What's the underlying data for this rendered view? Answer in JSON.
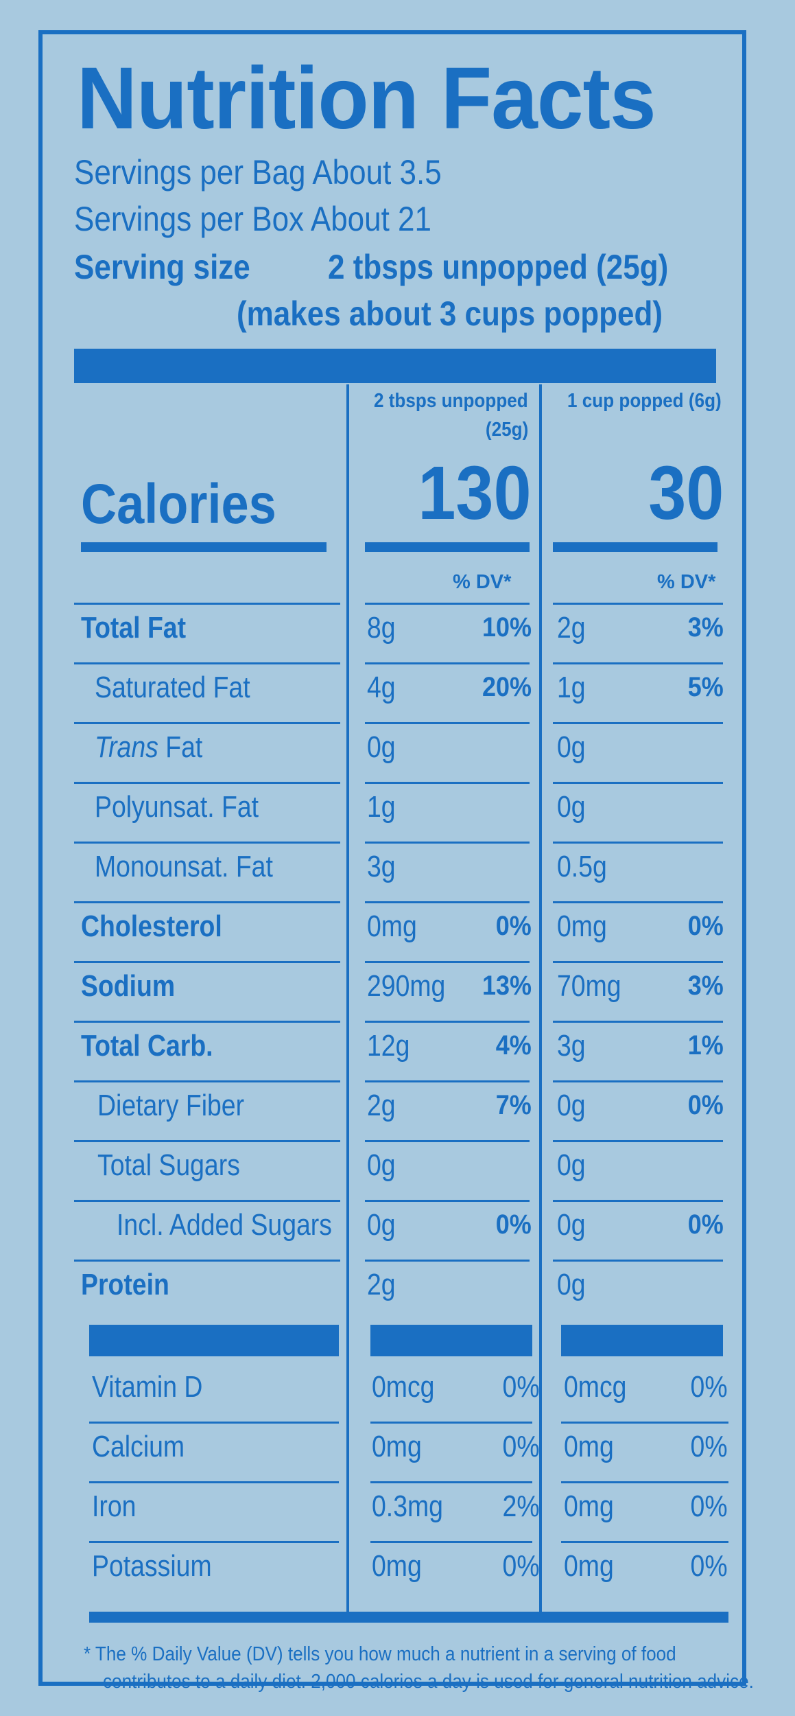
{
  "title": "Nutrition Facts",
  "servings_bag": "Servings per Bag About 3.5",
  "servings_box": "Servings per Box About 21",
  "serving_size_label": "Serving size",
  "serving_size_value": "2 tbsps unpopped (25g)",
  "serving_size_note": "(makes about 3 cups popped)",
  "col1_header_line1": "2 tbsps unpopped",
  "col1_header_line2": "(25g)",
  "col2_header": "1 cup popped (6g)",
  "calories_label": "Calories",
  "calories_col1": "130",
  "calories_col2": "30",
  "dv_header": "% DV*",
  "rows": [
    {
      "label": "Total Fat",
      "a1": "8g",
      "p1": "10%",
      "a2": "2g",
      "p2": "3%"
    },
    {
      "label": "Saturated Fat",
      "a1": "4g",
      "p1": "20%",
      "a2": "1g",
      "p2": "5%"
    },
    {
      "label_italic": "Trans",
      "label": " Fat",
      "a1": "0g",
      "p1": "",
      "a2": "0g",
      "p2": ""
    },
    {
      "label": "Polyunsat. Fat",
      "a1": "1g",
      "p1": "",
      "a2": "0g",
      "p2": ""
    },
    {
      "label": "Monounsat. Fat",
      "a1": "3g",
      "p1": "",
      "a2": "0.5g",
      "p2": ""
    },
    {
      "label": "Cholesterol",
      "a1": "0mg",
      "p1": "0%",
      "a2": "0mg",
      "p2": "0%"
    },
    {
      "label": "Sodium",
      "a1": "290mg",
      "p1": "13%",
      "a2": "70mg",
      "p2": "3%"
    },
    {
      "label": "Total Carb.",
      "a1": "12g",
      "p1": "4%",
      "a2": "3g",
      "p2": "1%"
    },
    {
      "label": "Dietary Fiber",
      "a1": "2g",
      "p1": "7%",
      "a2": "0g",
      "p2": "0%"
    },
    {
      "label": "Total Sugars",
      "a1": "0g",
      "p1": "",
      "a2": "0g",
      "p2": ""
    },
    {
      "label": "Incl. Added Sugars",
      "a1": "0g",
      "p1": "0%",
      "a2": "0g",
      "p2": "0%"
    },
    {
      "label": "Protein",
      "a1": "2g",
      "p1": "",
      "a2": "0g",
      "p2": ""
    }
  ],
  "vitamins": [
    {
      "label": "Vitamin D",
      "a1": "0mcg",
      "p1": "0%",
      "a2": "0mcg",
      "p2": "0%"
    },
    {
      "label": "Calcium",
      "a1": "0mg",
      "p1": "0%",
      "a2": "0mg",
      "p2": "0%"
    },
    {
      "label": "Iron",
      "a1": "0.3mg",
      "p1": "2%",
      "a2": "0mg",
      "p2": "0%"
    },
    {
      "label": "Potassium",
      "a1": "0mg",
      "p1": "0%",
      "a2": "0mg",
      "p2": "0%"
    }
  ],
  "footnote_line1": "* The % Daily Value (DV) tells you how much a nutrient in a serving of food",
  "footnote_line2": "contributes to a daily diet. 2,000 calories a day is used for general nutrition advice.",
  "colors": {
    "ink": "#1a6fc2",
    "background": "#a8c9df"
  }
}
